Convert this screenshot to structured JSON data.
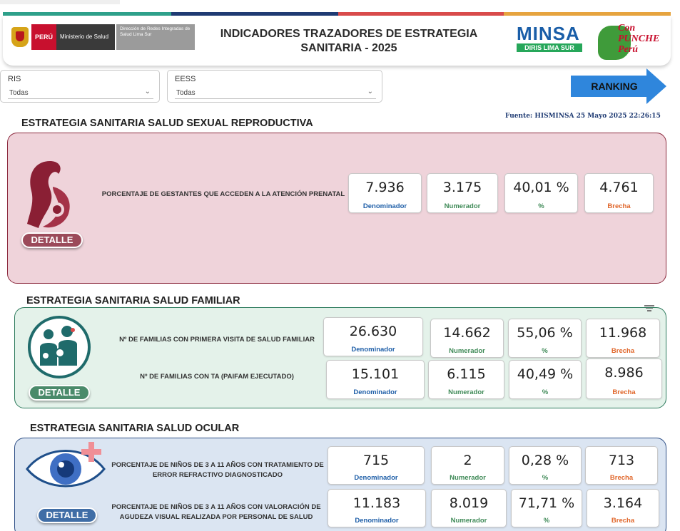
{
  "header": {
    "title": "INDICADORES TRAZADORES DE ESTRATEGIA SANITARIA - 2025",
    "logo_peru": "PERÚ",
    "logo_ministerio": "Ministerio de Salud",
    "logo_diris": "Dirección de Redes Integradas de Salud Lima Sur",
    "minsa": "MINSA",
    "minsa_sub": "DIRIS LIMA SUR",
    "campaign": "Con PUNCHE Perú"
  },
  "filters": {
    "ris": {
      "label": "RIS",
      "value": "Todas"
    },
    "eess": {
      "label": "EESS",
      "value": "Todas"
    }
  },
  "ranking_label": "RANKING",
  "source": "Fuente: HISMINSA 25 Mayo 2025 22:26:15",
  "detalle_label": "DETALLE",
  "sections": [
    {
      "title": "ESTRATEGIA SANITARIA SALUD SEXUAL REPRODUCTIVA",
      "rows": [
        {
          "label": "PORCENTAJE DE GESTANTES QUE ACCEDEN A LA ATENCIÓN PRENATAL",
          "denominador": "7.936",
          "numerador": "3.175",
          "porcentaje": "40,01 %",
          "brecha": "4.761"
        }
      ]
    },
    {
      "title": "ESTRATEGIA SANITARIA SALUD FAMILIAR",
      "rows": [
        {
          "label": "Nº DE FAMILIAS CON PRIMERA VISITA DE SALUD FAMILIAR",
          "denominador": "26.630",
          "numerador": "14.662",
          "porcentaje": "55,06 %",
          "brecha": "11.968"
        },
        {
          "label": "Nº DE FAMILIAS CON TA (PAIFAM EJECUTADO)",
          "denominador": "15.101",
          "numerador": "6.115",
          "porcentaje": "40,49 %",
          "brecha": "8.986"
        }
      ]
    },
    {
      "title": "ESTRATEGIA SANITARIA SALUD OCULAR",
      "rows": [
        {
          "label": "PORCENTAJE DE NIÑOS DE 3 A 11 AÑOS CON TRATAMIENTO DE ERROR REFRACTIVO DIAGNOSTICADO",
          "denominador": "715",
          "numerador": "2",
          "porcentaje": "0,28 %",
          "brecha": "713"
        },
        {
          "label": "PORCENTAJE DE NIÑOS DE 3 A 11 AÑOS CON VALORACIÓN DE AGUDEZA VISUAL REALIZADA POR PERSONAL DE SALUD",
          "denominador": "11.183",
          "numerador": "8.019",
          "porcentaje": "71,71 %",
          "brecha": "3.164"
        }
      ]
    }
  ],
  "captions": {
    "denominador": "Denominador",
    "numerador": "Numerador",
    "porcentaje": "%",
    "brecha": "Brecha"
  },
  "colors": {
    "ssr_panel": "#efd3da",
    "familiar_panel": "#e4f2ea",
    "ocular_panel": "#dbe5f2",
    "ranking": "#2f86dc",
    "denominador": "#1f5fa8",
    "numerador": "#3f8a57",
    "brecha": "#e0662a"
  },
  "icons": [
    "maternity-icon",
    "family-icon",
    "eye-icon",
    "ranking-arrow-icon",
    "chevron-down-icon",
    "filter-icon"
  ]
}
